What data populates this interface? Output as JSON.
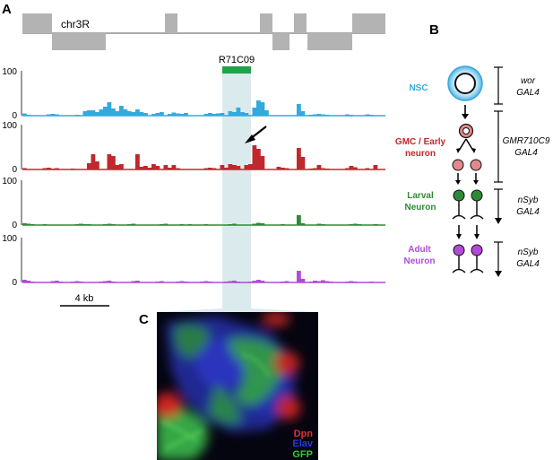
{
  "panel_a": {
    "label": "A",
    "chromosome": "chr3R",
    "region_label": "R71C09",
    "scale_bar_label": "4 kb",
    "tracks": [
      {
        "id": "nsc",
        "color": "#33aadd",
        "axis_labels": {
          "top": "100",
          "bottom": "0"
        },
        "values": [
          5,
          2,
          0,
          0,
          0,
          0,
          3,
          4,
          3,
          0,
          0,
          0,
          0,
          2,
          0,
          10,
          12,
          12,
          8,
          14,
          20,
          30,
          16,
          10,
          22,
          14,
          10,
          8,
          14,
          8,
          6,
          0,
          4,
          6,
          8,
          0,
          4,
          7,
          5,
          4,
          6,
          0,
          0,
          0,
          0,
          4,
          6,
          4,
          5,
          6,
          0,
          10,
          8,
          18,
          8,
          6,
          0,
          18,
          34,
          30,
          12,
          0,
          0,
          0,
          0,
          0,
          0,
          0,
          26,
          10,
          0,
          2,
          3,
          4,
          3,
          2,
          0,
          0,
          0,
          0,
          3,
          2,
          0,
          0,
          0,
          3,
          2,
          0,
          0,
          0
        ]
      },
      {
        "id": "gmc",
        "color": "#c0282d",
        "axis_labels": {
          "top": "100",
          "bottom": "0"
        },
        "values": [
          3,
          0,
          0,
          0,
          0,
          3,
          4,
          2,
          3,
          0,
          0,
          0,
          2,
          0,
          0,
          0,
          14,
          34,
          18,
          0,
          0,
          34,
          30,
          10,
          12,
          0,
          0,
          0,
          34,
          6,
          8,
          4,
          12,
          8,
          0,
          10,
          4,
          10,
          3,
          0,
          0,
          0,
          0,
          0,
          0,
          3,
          4,
          3,
          0,
          10,
          4,
          12,
          10,
          8,
          0,
          10,
          12,
          54,
          46,
          30,
          0,
          0,
          0,
          6,
          4,
          3,
          0,
          0,
          48,
          28,
          0,
          2,
          3,
          10,
          3,
          2,
          0,
          0,
          0,
          0,
          3,
          8,
          5,
          0,
          0,
          3,
          0,
          10,
          0,
          0
        ]
      },
      {
        "id": "larval",
        "color": "#2f8a36",
        "axis_labels": {
          "top": "100",
          "bottom": "0"
        },
        "values": [
          4,
          3,
          2,
          0,
          0,
          2,
          0,
          0,
          0,
          0,
          0,
          0,
          0,
          2,
          3,
          2,
          2,
          0,
          0,
          0,
          2,
          3,
          2,
          0,
          0,
          0,
          2,
          3,
          0,
          0,
          0,
          0,
          0,
          0,
          2,
          3,
          0,
          0,
          0,
          2,
          0,
          2,
          0,
          0,
          0,
          2,
          0,
          0,
          0,
          0,
          0,
          2,
          3,
          0,
          0,
          0,
          0,
          3,
          5,
          4,
          0,
          0,
          0,
          0,
          2,
          0,
          0,
          0,
          22,
          4,
          0,
          0,
          0,
          3,
          2,
          0,
          0,
          0,
          0,
          0,
          0,
          2,
          3,
          2,
          0,
          0,
          0,
          2,
          0,
          0
        ]
      },
      {
        "id": "adult",
        "color": "#b24ad8",
        "axis_labels": {
          "top": "100",
          "bottom": "0"
        },
        "values": [
          6,
          4,
          2,
          0,
          0,
          0,
          0,
          3,
          4,
          2,
          0,
          0,
          2,
          3,
          2,
          0,
          0,
          0,
          0,
          2,
          3,
          4,
          2,
          0,
          0,
          0,
          0,
          3,
          4,
          0,
          0,
          0,
          0,
          2,
          3,
          0,
          0,
          0,
          2,
          3,
          2,
          0,
          0,
          0,
          2,
          3,
          2,
          0,
          0,
          0,
          2,
          3,
          4,
          2,
          0,
          0,
          2,
          4,
          6,
          4,
          0,
          0,
          0,
          0,
          2,
          3,
          0,
          0,
          26,
          8,
          0,
          2,
          4,
          3,
          5,
          3,
          2,
          0,
          0,
          0,
          2,
          3,
          2,
          0,
          0,
          0,
          2,
          0,
          0,
          0
        ]
      }
    ]
  },
  "panel_b": {
    "label": "B",
    "stages": [
      {
        "name": "NSC",
        "color": "#33aadd",
        "driver_line1": "wor",
        "driver_line2": "GAL4"
      },
      {
        "name_line1": "GMC / Early",
        "name_line2": "neuron",
        "color": "#c0282d",
        "driver_line1": "GMR710C9",
        "driver_line2": "GAL4"
      },
      {
        "name_line1": "Larval",
        "name_line2": "Neuron",
        "color": "#2f8a36",
        "driver_line1": "nSyb",
        "driver_line2": "GAL4"
      },
      {
        "name_line1": "Adult",
        "name_line2": "Neuron",
        "color": "#b24ad8",
        "driver_line1": "nSyb",
        "driver_line2": "GAL4"
      }
    ]
  },
  "panel_c": {
    "label": "C",
    "legend": [
      {
        "text": "Dpn",
        "color": "#e03030"
      },
      {
        "text": "Elav",
        "color": "#2a3ae0"
      },
      {
        "text": "GFP",
        "color": "#33cc33"
      }
    ]
  }
}
